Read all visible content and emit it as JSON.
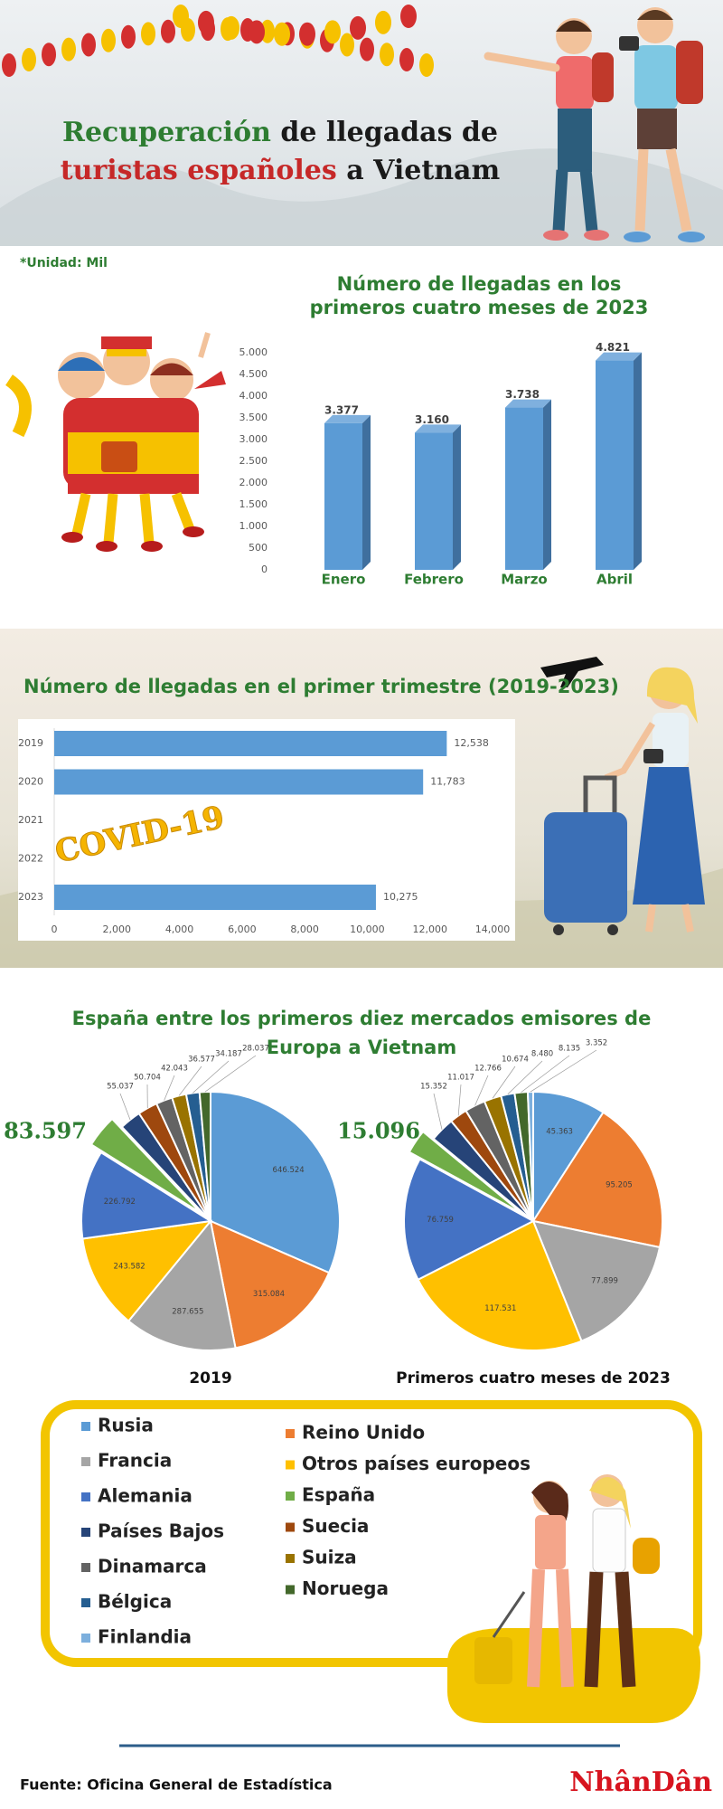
{
  "header": {
    "title_lines": [
      [
        {
          "text": "Recuperación",
          "color": "#2e7d32"
        },
        {
          "text": " de llegadas de",
          "color": "#1a1a1a"
        }
      ],
      [
        {
          "text": "turistas españoles",
          "color": "#c62828"
        },
        {
          "text": " a Vietnam",
          "color": "#1a1a1a"
        }
      ]
    ]
  },
  "unit_note": "*Unidad: Mil",
  "legend": {
    "categories": [
      "Rusia",
      "Reino Unido",
      "Francia",
      "Otros países europeos",
      "Alemania",
      "España",
      "Países Bajos",
      "Suecia",
      "Dinamarca",
      "Suiza",
      "Bélgica",
      "Noruega",
      "Finlandia"
    ],
    "colors": [
      "#5b9bd5",
      "#ed7d31",
      "#a5a5a5",
      "#ffc000",
      "#4472c4",
      "#70ad47",
      "#264478",
      "#9e480e",
      "#636363",
      "#997300",
      "#255e91",
      "#43682b",
      "#7cafdd"
    ]
  },
  "chart_data": [
    {
      "type": "bar3d",
      "title": [
        "Número de llegadas en los",
        "primeros cuatro meses de 2023"
      ],
      "categories": [
        "Enero",
        "Febrero",
        "Marzo",
        "Abril"
      ],
      "values": [
        3377,
        3160,
        3738,
        4821
      ],
      "value_labels": [
        "3.377",
        "3.160",
        "3.738",
        "4.821"
      ],
      "color": "#5b9bd5",
      "ylim": [
        0,
        5000
      ],
      "yticks": [
        0,
        500,
        {
          "value": 1000,
          "label": "1.000"
        },
        {
          "value": 1500,
          "label": "1.500"
        },
        {
          "value": 2000,
          "label": "2.000"
        },
        {
          "value": 2500,
          "label": "2.500"
        },
        {
          "value": 3000,
          "label": "3.000"
        },
        {
          "value": 3500,
          "label": "3.500"
        },
        {
          "value": 4000,
          "label": "4.000"
        },
        {
          "value": 4500,
          "label": "4.500"
        },
        {
          "value": 5000,
          "label": "5.000"
        }
      ]
    },
    {
      "type": "hbar",
      "title": "Número de llegadas en el primer trimestre (2019-2023)",
      "categories": [
        "2019",
        "2020",
        "2021",
        "2022",
        "2023"
      ],
      "values": [
        12538,
        11783,
        null,
        null,
        10275
      ],
      "value_labels": [
        "12,538",
        "11,783",
        null,
        null,
        "10,275"
      ],
      "color": "#5b9bd5",
      "xlim": [
        0,
        14000
      ],
      "xticks": [
        0,
        {
          "value": 2000,
          "label": "2,000"
        },
        {
          "value": 4000,
          "label": "4,000"
        },
        {
          "value": 6000,
          "label": "6,000"
        },
        {
          "value": 8000,
          "label": "8,000"
        },
        {
          "value": 10000,
          "label": "10,000"
        },
        {
          "value": 12000,
          "label": "12,000"
        },
        {
          "value": 14000,
          "label": "14,000"
        }
      ],
      "annotation": "COVID-19"
    },
    {
      "type": "pie",
      "title": [
        "España entre los primeros diez mercados emisores de",
        "Europa a Vietnam"
      ],
      "label": "2019",
      "values": [
        646524,
        315084,
        287655,
        243582,
        226792,
        83597,
        55037,
        50704,
        42043,
        36577,
        34187,
        28037,
        null
      ],
      "value_labels": [
        "646.524",
        "315.084",
        "287.655",
        "243.582",
        "226.792",
        "83.597",
        "55.037",
        "50.704",
        "42.043",
        "36.577",
        "34.187",
        "28.037",
        null
      ]
    },
    {
      "type": "pie",
      "label": "Primeros cuatro meses de 2023",
      "values": [
        45363,
        95205,
        77899,
        117531,
        76759,
        15096,
        15352,
        11017,
        12766,
        10674,
        8480,
        8135,
        3352
      ],
      "value_labels": [
        "45.363",
        "95.205",
        "77.899",
        "117.531",
        "76.759",
        "15.096",
        "15.352",
        "11.017",
        "12.766",
        "10.674",
        "8.480",
        "8.135",
        "3.352"
      ]
    }
  ],
  "source": "Fuente: Oficina General de Estadística",
  "brand": "NhânDân"
}
